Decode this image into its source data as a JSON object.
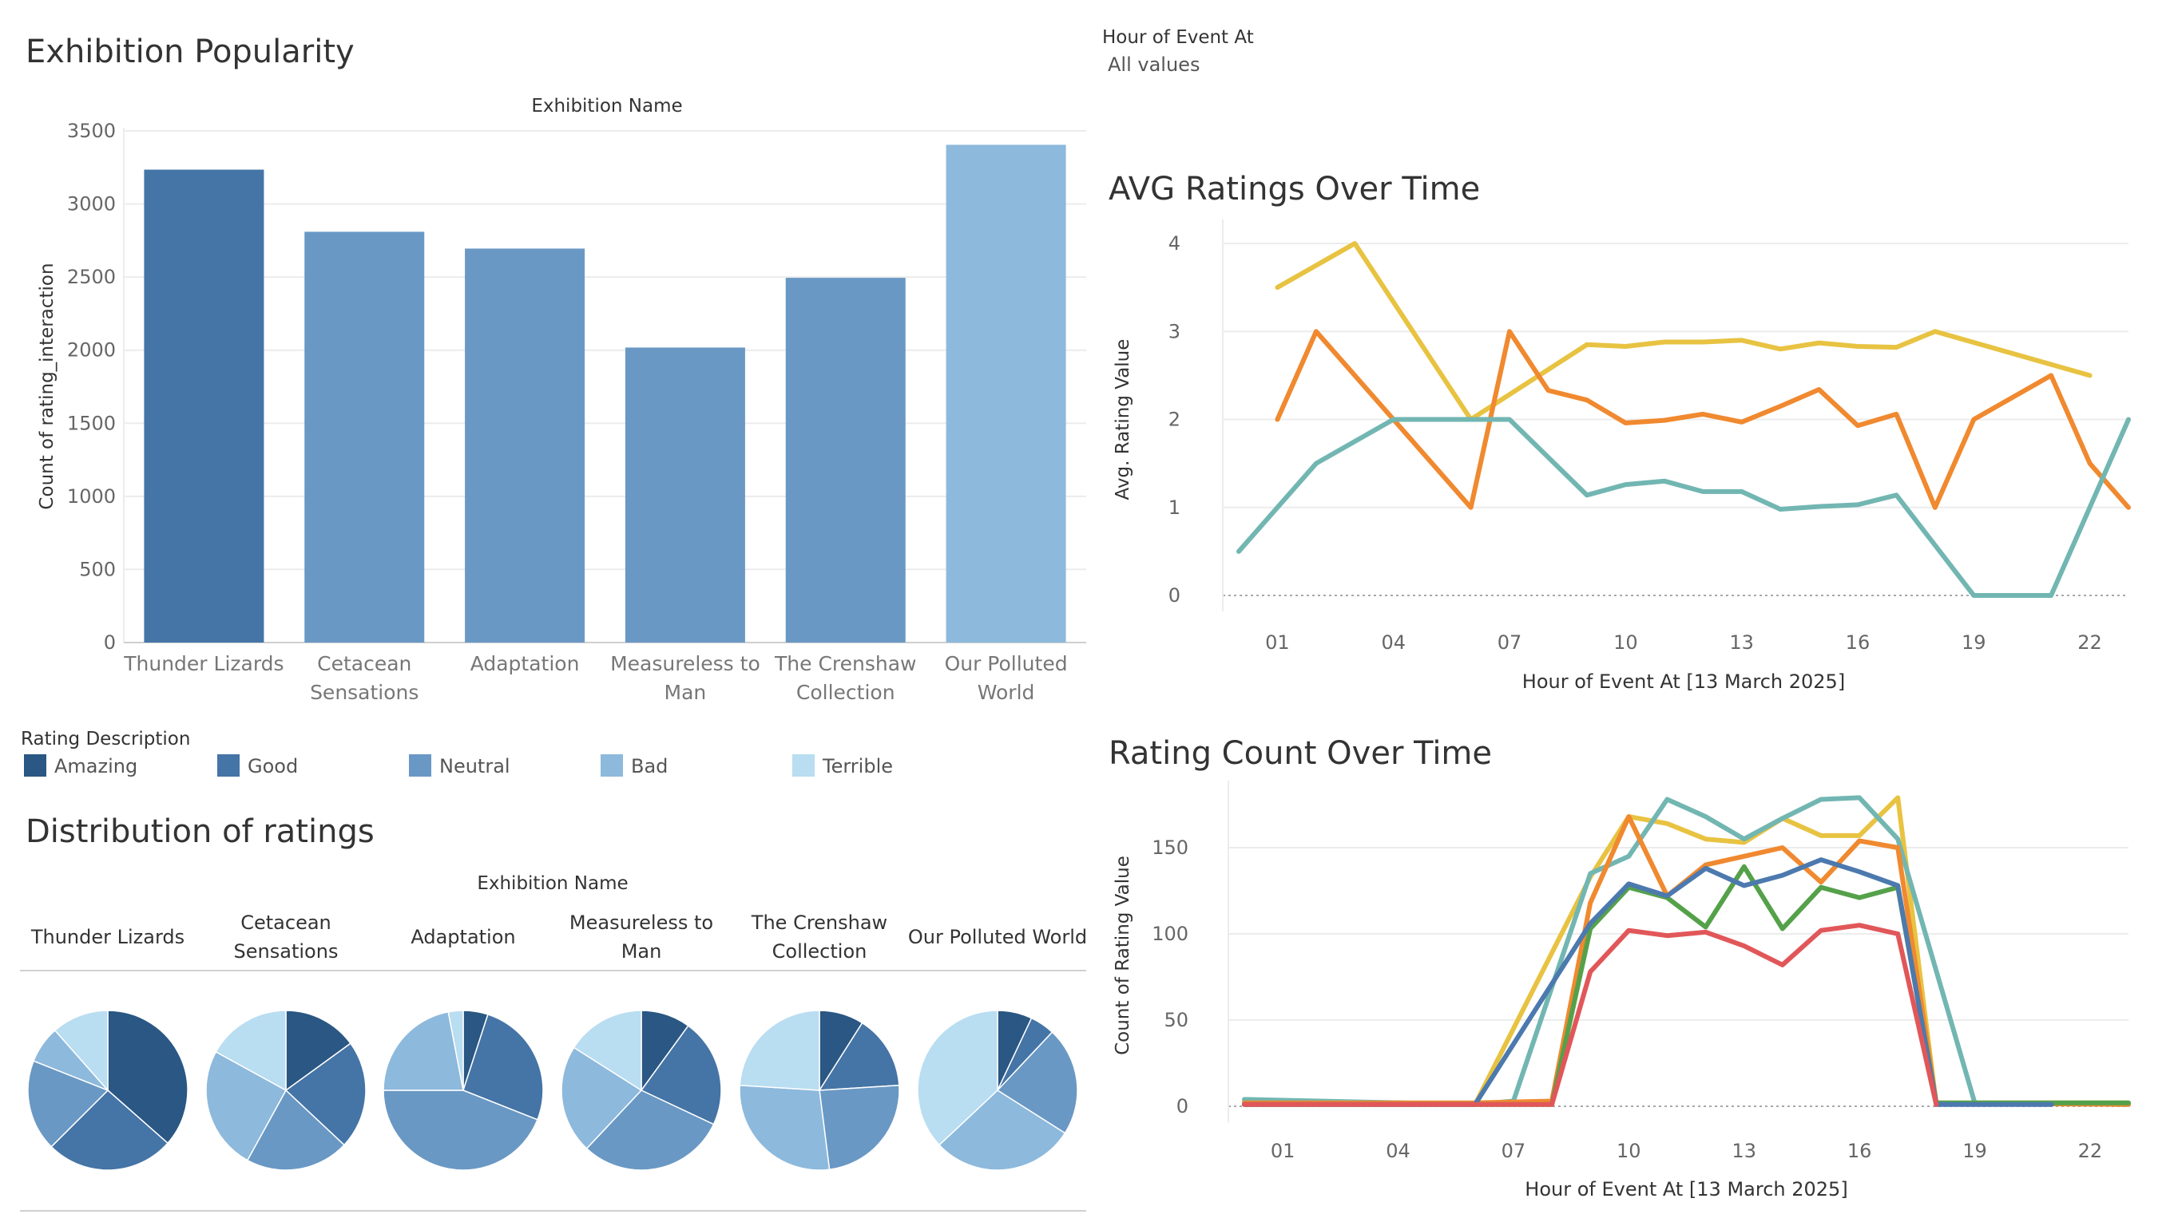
{
  "filter": {
    "label": "Hour of Event At",
    "value": "All values"
  },
  "legend": {
    "title": "Rating Description",
    "items": [
      {
        "label": "Amazing",
        "color": "#2a5783"
      },
      {
        "label": "Good",
        "color": "#4574a6"
      },
      {
        "label": "Neutral",
        "color": "#6a98c4"
      },
      {
        "label": "Bad",
        "color": "#8db9dc"
      },
      {
        "label": "Terrible",
        "color": "#b9ddf1"
      }
    ]
  },
  "chart_data": [
    {
      "id": "popularity",
      "type": "bar",
      "title": "Exhibition Popularity",
      "header": "Exhibition Name",
      "ylabel": "Count of rating_interaction",
      "xlabel": "",
      "ylim": [
        0,
        3500
      ],
      "yticks": [
        0,
        500,
        1000,
        1500,
        2000,
        2500,
        3000,
        3500
      ],
      "grid": true,
      "categories": [
        [
          "Thunder Lizards"
        ],
        [
          "Cetacean",
          "Sensations"
        ],
        [
          "Adaptation"
        ],
        [
          "Measureless to",
          "Man"
        ],
        [
          "The Crenshaw",
          "Collection"
        ],
        [
          "Our Polluted",
          "World"
        ]
      ],
      "values": [
        3235,
        2810,
        2695,
        2018,
        2495,
        3405
      ],
      "colors": [
        "#4574a6",
        "#6a98c4",
        "#6a98c4",
        "#6a98c4",
        "#6a98c4",
        "#8db9dc"
      ]
    },
    {
      "id": "distribution",
      "type": "pie",
      "title": "Distribution of ratings",
      "header": "Exhibition Name",
      "slice_order": [
        "Amazing",
        "Good",
        "Neutral",
        "Bad",
        "Terrible"
      ],
      "pies": [
        {
          "exhibition": [
            "Thunder Lizards"
          ],
          "shares": [
            0.365,
            0.26,
            0.185,
            0.075,
            0.115
          ]
        },
        {
          "exhibition": [
            "Cetacean",
            "Sensations"
          ],
          "shares": [
            0.15,
            0.22,
            0.21,
            0.25,
            0.17
          ]
        },
        {
          "exhibition": [
            "Adaptation"
          ],
          "shares": [
            0.05,
            0.26,
            0.44,
            0.22,
            0.03
          ]
        },
        {
          "exhibition": [
            "Measureless to",
            "Man"
          ],
          "shares": [
            0.1,
            0.22,
            0.3,
            0.22,
            0.16
          ]
        },
        {
          "exhibition": [
            "The Crenshaw",
            "Collection"
          ],
          "shares": [
            0.09,
            0.15,
            0.24,
            0.28,
            0.24
          ]
        },
        {
          "exhibition": [
            "Our Polluted World"
          ],
          "shares": [
            0.07,
            0.05,
            0.22,
            0.29,
            0.37
          ]
        }
      ]
    },
    {
      "id": "avg_ratings",
      "type": "line",
      "title": "AVG Ratings Over Time",
      "xlabel": "Hour of Event At [13 March 2025]",
      "ylabel": "Avg. Rating Value",
      "ylim": [
        0,
        4
      ],
      "yticks": [
        0,
        1,
        2,
        3,
        4
      ],
      "xticks": [
        "01",
        "04",
        "07",
        "10",
        "13",
        "16",
        "19",
        "22"
      ],
      "grid": true,
      "series": [
        {
          "color": "#e8c342",
          "points": [
            [
              1,
              3.5
            ],
            [
              3,
              4
            ],
            [
              6,
              2
            ],
            [
              9,
              2.85
            ],
            [
              10,
              2.83
            ],
            [
              11,
              2.88
            ],
            [
              12,
              2.88
            ],
            [
              13,
              2.9
            ],
            [
              14,
              2.8
            ],
            [
              15,
              2.87
            ],
            [
              16,
              2.83
            ],
            [
              17,
              2.82
            ],
            [
              18,
              3
            ],
            [
              22,
              2.5
            ]
          ]
        },
        {
          "color": "#f0892f",
          "points": [
            [
              1,
              2
            ],
            [
              2,
              3
            ],
            [
              6,
              1
            ],
            [
              7,
              3
            ],
            [
              8,
              2.33
            ],
            [
              9,
              2.22
            ],
            [
              10,
              1.96
            ],
            [
              11,
              1.99
            ],
            [
              12,
              2.06
            ],
            [
              13,
              1.97
            ],
            [
              14,
              2.15
            ],
            [
              15,
              2.34
            ],
            [
              16,
              1.93
            ],
            [
              17,
              2.06
            ],
            [
              18,
              1
            ],
            [
              19,
              2
            ],
            [
              21,
              2.5
            ],
            [
              22,
              1.5
            ],
            [
              23,
              1
            ]
          ]
        },
        {
          "color": "#72b6b2",
          "points": [
            [
              0,
              0.5
            ],
            [
              2,
              1.5
            ],
            [
              4,
              2
            ],
            [
              7,
              2
            ],
            [
              9,
              1.14
            ],
            [
              10,
              1.26
            ],
            [
              11,
              1.3
            ],
            [
              12,
              1.18
            ],
            [
              13,
              1.18
            ],
            [
              14,
              0.98
            ],
            [
              15,
              1.01
            ],
            [
              16,
              1.03
            ],
            [
              17,
              1.14
            ],
            [
              19,
              0
            ],
            [
              21,
              0
            ],
            [
              23,
              2
            ]
          ]
        }
      ]
    },
    {
      "id": "rating_count",
      "type": "line",
      "title": "Rating Count Over Time",
      "xlabel": "Hour of Event At [13 March 2025]",
      "ylabel": "Count of Rating Value",
      "ylim": [
        0,
        175
      ],
      "yticks": [
        0,
        50,
        100,
        150
      ],
      "xticks": [
        "01",
        "04",
        "07",
        "10",
        "13",
        "16",
        "19",
        "22"
      ],
      "grid": true,
      "series": [
        {
          "color": "#e8c342",
          "points": [
            [
              0,
              3
            ],
            [
              2,
              2
            ],
            [
              4,
              2
            ],
            [
              6,
              1
            ],
            [
              9,
              133
            ],
            [
              10,
              168
            ],
            [
              11,
              164
            ],
            [
              12,
              155
            ],
            [
              13,
              153
            ],
            [
              14,
              167
            ],
            [
              15,
              157
            ],
            [
              16,
              157
            ],
            [
              17,
              179
            ],
            [
              18,
              1
            ],
            [
              19,
              2
            ],
            [
              22,
              2
            ],
            [
              23,
              2
            ]
          ]
        },
        {
          "color": "#72b6b2",
          "points": [
            [
              0,
              4
            ],
            [
              6,
              1
            ],
            [
              7,
              3
            ],
            [
              9,
              135
            ],
            [
              10,
              145
            ],
            [
              11,
              178
            ],
            [
              12,
              168
            ],
            [
              13,
              155
            ],
            [
              14,
              167
            ],
            [
              15,
              178
            ],
            [
              16,
              179
            ],
            [
              17,
              155
            ],
            [
              19,
              2
            ],
            [
              23,
              1
            ]
          ]
        },
        {
          "color": "#f0892f",
          "points": [
            [
              0,
              2
            ],
            [
              6,
              2
            ],
            [
              8,
              3
            ],
            [
              9,
              118
            ],
            [
              10,
              168
            ],
            [
              11,
              122
            ],
            [
              12,
              140
            ],
            [
              13,
              145
            ],
            [
              14,
              150
            ],
            [
              15,
              130
            ],
            [
              16,
              154
            ],
            [
              17,
              150
            ],
            [
              18,
              2
            ],
            [
              23,
              1
            ]
          ]
        },
        {
          "color": "#55a14a",
          "points": [
            [
              0,
              1
            ],
            [
              6,
              1
            ],
            [
              8,
              1
            ],
            [
              9,
              103
            ],
            [
              10,
              127
            ],
            [
              11,
              121
            ],
            [
              12,
              104
            ],
            [
              13,
              139
            ],
            [
              14,
              103
            ],
            [
              15,
              127
            ],
            [
              16,
              121
            ],
            [
              17,
              127
            ],
            [
              18,
              2
            ],
            [
              23,
              2
            ]
          ]
        },
        {
          "color": "#4c79ae",
          "points": [
            [
              0,
              1
            ],
            [
              6,
              1
            ],
            [
              9,
              106
            ],
            [
              10,
              129
            ],
            [
              11,
              122
            ],
            [
              12,
              138
            ],
            [
              13,
              128
            ],
            [
              14,
              134
            ],
            [
              15,
              143
            ],
            [
              16,
              136
            ],
            [
              17,
              128
            ],
            [
              18,
              1
            ],
            [
              21,
              1
            ]
          ]
        },
        {
          "color": "#e15759",
          "points": [
            [
              0,
              1
            ],
            [
              6,
              1
            ],
            [
              8,
              1
            ],
            [
              9,
              78
            ],
            [
              10,
              102
            ],
            [
              11,
              99
            ],
            [
              12,
              101
            ],
            [
              13,
              93
            ],
            [
              14,
              82
            ],
            [
              15,
              102
            ],
            [
              16,
              105
            ],
            [
              17,
              100
            ],
            [
              18,
              1
            ]
          ]
        }
      ]
    }
  ]
}
